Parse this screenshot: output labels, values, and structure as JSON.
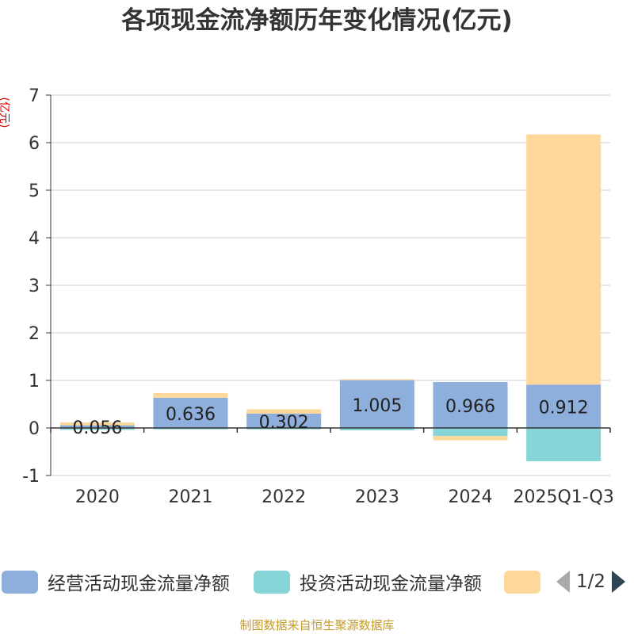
{
  "title": "各项现金流净额历年变化情况(亿元)",
  "footer": "制图数据来自恒生聚源数据库",
  "legend": {
    "page_indicator": "1/2"
  },
  "colors": {
    "operating": "#8eaedc",
    "investing": "#87d5d7",
    "financing": "#fed89a",
    "grid": "#cccccc",
    "axis": "#333333"
  },
  "chart_data": {
    "type": "bar",
    "stacked": true,
    "title": "各项现金流净额历年变化情况(亿元)",
    "ylabel": "(亿元)",
    "categories": [
      "2020",
      "2021",
      "2022",
      "2023",
      "2024",
      "2025Q1-Q3"
    ],
    "ylim": [
      -1,
      7
    ],
    "yticks": [
      -1,
      0,
      1,
      2,
      3,
      4,
      5,
      6,
      7
    ],
    "grid": true,
    "legend_position": "bottom",
    "series": [
      {
        "name": "经营活动现金流量净额",
        "values": [
          0.056,
          0.636,
          0.302,
          1.005,
          0.966,
          0.912
        ],
        "labels": [
          "0.056",
          "0.636",
          "0.302",
          "1.005",
          "0.966",
          "0.912"
        ]
      },
      {
        "name": "投资活动现金流量净额",
        "values": [
          -0.04,
          -0.03,
          -0.03,
          -0.05,
          -0.17,
          -0.7
        ]
      },
      {
        "name": "",
        "values": [
          0.06,
          0.1,
          0.09,
          0.02,
          -0.09,
          5.26
        ]
      }
    ]
  }
}
